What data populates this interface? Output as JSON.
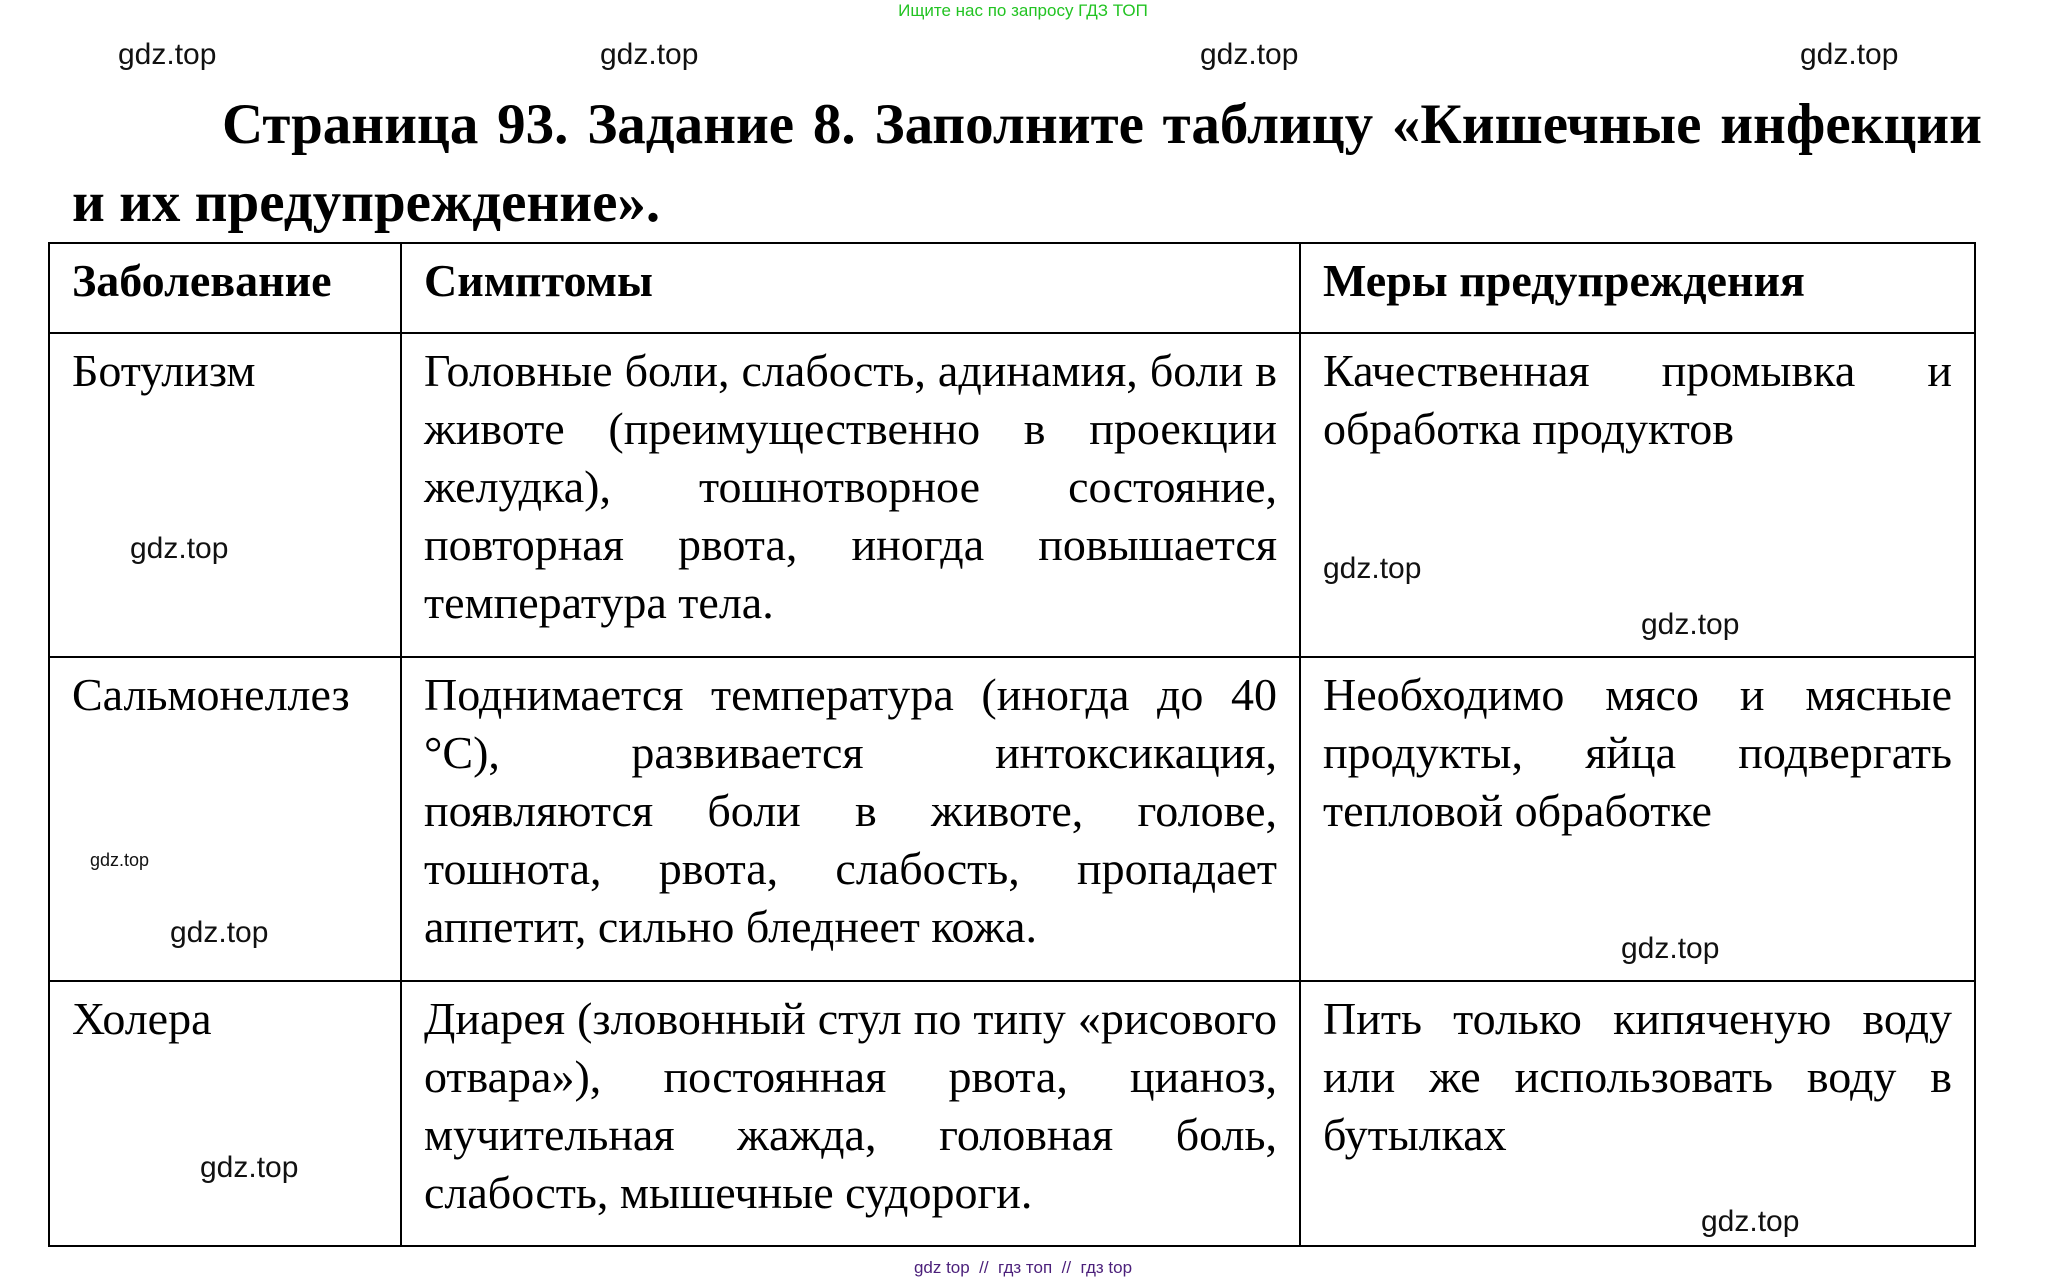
{
  "banner_top": "Ищите нас по запросу ГДЗ ТОП",
  "banner_bottom": "gdz top  //  гдз топ  //  гдз top",
  "title": "Страница 93. Задание 8. Заполните таблицу «Кишечные инфекции и их предупреждение».",
  "watermark": "gdz.top",
  "table": {
    "headers": [
      "Заболевание",
      "Симптомы",
      "Меры предупреждения"
    ],
    "rows": [
      [
        "Ботулизм",
        "Головные боли, слабость, адинамия, боли в животе (преимущественно в проекции желудка), тошнотворное состояние, повторная рвота, иногда повышается температура тела.",
        "Качественная промывка и обработка продуктов"
      ],
      [
        "Сальмонеллез",
        "Поднимается температура (иногда до 40 °С), развивается интоксикация, появляются боли в животе, голове, тошнота, рвота, слабость, пропадает аппетит, сильно бледнеет кожа.",
        "Необходимо мясо и мясные продукты, яйца подвергать тепловой обработке"
      ],
      [
        "Холера",
        "Диарея (зловонный стул по типу «рисового отвара»), постоянная рвота, цианоз, мучительная жажда, головная боль, слабость, мышечные судороги.",
        "Пить только кипяченую воду или же использовать воду в бутылках"
      ]
    ]
  }
}
